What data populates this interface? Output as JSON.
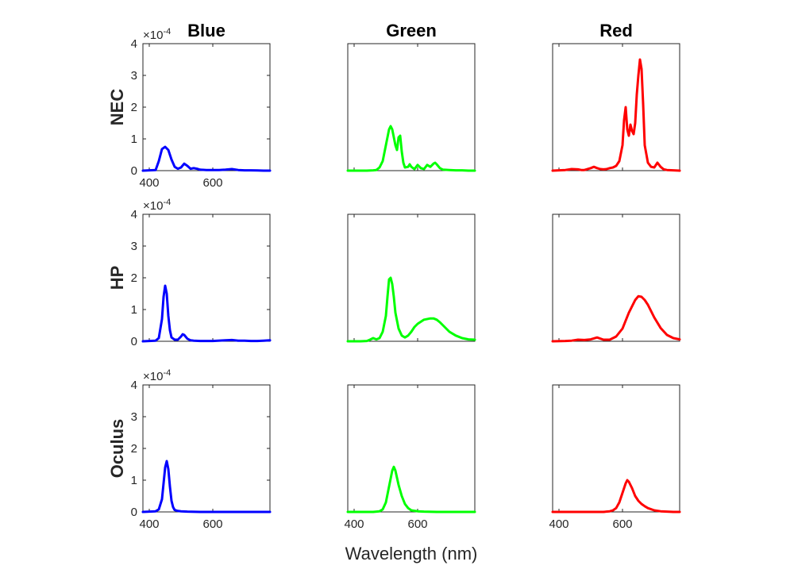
{
  "chart_data": {
    "type": "line",
    "layout": "3x3 small multiples",
    "xlabel": "Wavelength (nm)",
    "xlim": [
      380,
      780
    ],
    "ylim": [
      0,
      4
    ],
    "y_exponent_label": {
      "base": "×10",
      "power": "-4"
    },
    "xticks": [
      400,
      600
    ],
    "yticks": [
      0,
      1,
      2,
      3,
      4
    ],
    "columns": [
      {
        "title": "Blue",
        "color": "#0000ff"
      },
      {
        "title": "Green",
        "color": "#00ff00"
      },
      {
        "title": "Red",
        "color": "#ff0000"
      }
    ],
    "rows": [
      {
        "label": "NEC",
        "series": [
          {
            "x": [
              380,
              420,
              430,
              440,
              450,
              460,
              470,
              480,
              490,
              500,
              510,
              520,
              530,
              540,
              550,
              560,
              580,
              600,
              620,
              640,
              660,
              680,
              700,
              720,
              740,
              760,
              780
            ],
            "values": [
              0,
              0.02,
              0.3,
              0.68,
              0.75,
              0.65,
              0.35,
              0.12,
              0.06,
              0.1,
              0.22,
              0.15,
              0.06,
              0.08,
              0.06,
              0.03,
              0.02,
              0.02,
              0.02,
              0.03,
              0.05,
              0.02,
              0.01,
              0.01,
              0.005,
              0,
              0
            ]
          },
          {
            "x": [
              380,
              440,
              460,
              470,
              480,
              490,
              500,
              510,
              515,
              520,
              525,
              530,
              535,
              540,
              545,
              550,
              555,
              560,
              570,
              575,
              580,
              590,
              600,
              610,
              620,
              630,
              640,
              650,
              655,
              660,
              670,
              680,
              700,
              720,
              740,
              760,
              780
            ],
            "values": [
              0,
              0,
              0.01,
              0.02,
              0.1,
              0.3,
              0.8,
              1.3,
              1.4,
              1.3,
              1.05,
              0.8,
              0.65,
              1.05,
              1.1,
              0.6,
              0.25,
              0.1,
              0.12,
              0.2,
              0.12,
              0.05,
              0.18,
              0.08,
              0.05,
              0.18,
              0.12,
              0.22,
              0.25,
              0.2,
              0.08,
              0.03,
              0.02,
              0.01,
              0.01,
              0,
              0
            ]
          },
          {
            "x": [
              380,
              420,
              440,
              460,
              470,
              480,
              500,
              510,
              520,
              530,
              540,
              550,
              560,
              570,
              580,
              590,
              600,
              605,
              610,
              615,
              620,
              625,
              630,
              635,
              640,
              645,
              650,
              655,
              660,
              665,
              670,
              680,
              690,
              700,
              710,
              720,
              730,
              740,
              760,
              780
            ],
            "values": [
              0,
              0.02,
              0.05,
              0.04,
              0.02,
              0.02,
              0.08,
              0.12,
              0.08,
              0.05,
              0.04,
              0.05,
              0.08,
              0.1,
              0.15,
              0.3,
              0.8,
              1.6,
              2.0,
              1.3,
              1.1,
              1.45,
              1.25,
              1.15,
              1.5,
              2.4,
              3.0,
              3.5,
              3.2,
              2.1,
              0.8,
              0.25,
              0.12,
              0.1,
              0.25,
              0.12,
              0.04,
              0.02,
              0.01,
              0
            ]
          }
        ]
      },
      {
        "label": "HP",
        "series": [
          {
            "x": [
              380,
              420,
              430,
              440,
              445,
              450,
              455,
              460,
              465,
              470,
              480,
              490,
              500,
              505,
              510,
              520,
              530,
              540,
              560,
              600,
              640,
              660,
              680,
              700,
              720,
              740,
              760,
              780
            ],
            "values": [
              0,
              0.02,
              0.1,
              0.7,
              1.4,
              1.75,
              1.5,
              0.8,
              0.35,
              0.12,
              0.05,
              0.05,
              0.15,
              0.22,
              0.2,
              0.08,
              0.03,
              0.02,
              0.01,
              0.01,
              0.03,
              0.04,
              0.02,
              0.02,
              0.01,
              0.01,
              0.02,
              0.03
            ]
          },
          {
            "x": [
              380,
              420,
              440,
              450,
              460,
              470,
              480,
              490,
              500,
              505,
              510,
              515,
              520,
              525,
              530,
              540,
              550,
              560,
              570,
              580,
              590,
              600,
              620,
              640,
              650,
              660,
              670,
              680,
              700,
              720,
              740,
              760,
              780
            ],
            "values": [
              0,
              0,
              0.01,
              0.05,
              0.1,
              0.06,
              0.1,
              0.3,
              0.8,
              1.4,
              1.95,
              2.0,
              1.8,
              1.4,
              0.9,
              0.4,
              0.18,
              0.12,
              0.18,
              0.3,
              0.45,
              0.55,
              0.68,
              0.72,
              0.72,
              0.68,
              0.6,
              0.5,
              0.3,
              0.18,
              0.1,
              0.06,
              0.05
            ]
          },
          {
            "x": [
              380,
              420,
              440,
              460,
              480,
              500,
              520,
              540,
              560,
              580,
              600,
              620,
              640,
              650,
              660,
              670,
              680,
              690,
              700,
              720,
              740,
              760,
              780
            ],
            "values": [
              0,
              0.01,
              0.02,
              0.05,
              0.04,
              0.06,
              0.12,
              0.05,
              0.05,
              0.15,
              0.4,
              0.9,
              1.3,
              1.42,
              1.4,
              1.3,
              1.15,
              0.95,
              0.75,
              0.42,
              0.2,
              0.1,
              0.06
            ]
          }
        ]
      },
      {
        "label": "Oculus",
        "series": [
          {
            "x": [
              380,
              420,
              430,
              440,
              445,
              450,
              455,
              460,
              465,
              470,
              475,
              480,
              490,
              500,
              520,
              560,
              600,
              700,
              780
            ],
            "values": [
              0,
              0.02,
              0.08,
              0.4,
              0.9,
              1.4,
              1.6,
              1.35,
              0.8,
              0.35,
              0.15,
              0.06,
              0.03,
              0.02,
              0.01,
              0,
              0,
              0,
              0
            ]
          },
          {
            "x": [
              380,
              460,
              480,
              490,
              500,
              510,
              520,
              525,
              530,
              540,
              550,
              560,
              570,
              580,
              600,
              620,
              660,
              700,
              780
            ],
            "values": [
              0,
              0,
              0.02,
              0.08,
              0.3,
              0.8,
              1.3,
              1.42,
              1.3,
              0.85,
              0.5,
              0.25,
              0.12,
              0.05,
              0.02,
              0.01,
              0,
              0,
              0
            ]
          },
          {
            "x": [
              380,
              540,
              560,
              570,
              580,
              590,
              600,
              610,
              615,
              620,
              630,
              640,
              650,
              660,
              670,
              680,
              700,
              720,
              740,
              760,
              780
            ],
            "values": [
              0,
              0,
              0.02,
              0.05,
              0.12,
              0.3,
              0.6,
              0.9,
              1.0,
              0.95,
              0.75,
              0.5,
              0.35,
              0.25,
              0.18,
              0.12,
              0.05,
              0.02,
              0.01,
              0,
              0
            ]
          }
        ]
      }
    ]
  }
}
